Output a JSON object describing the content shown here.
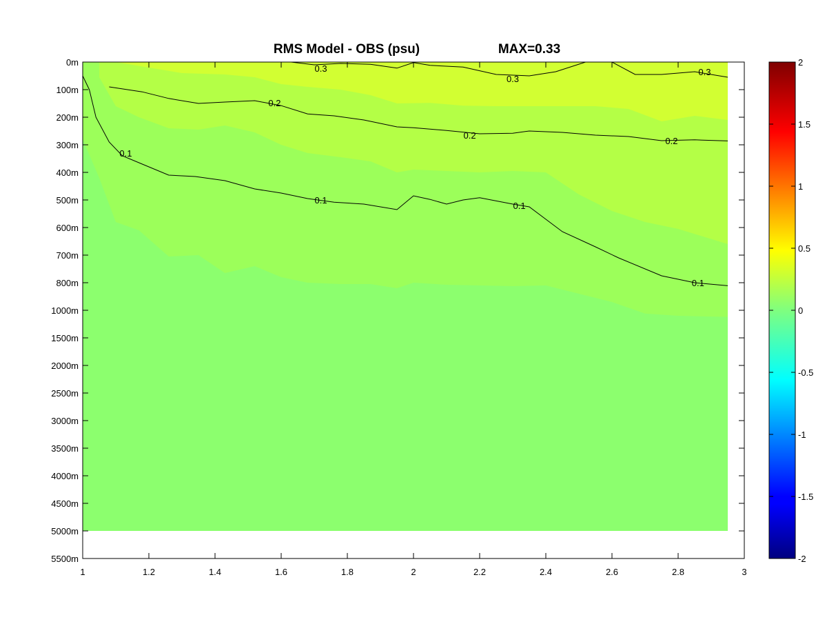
{
  "chart_data": {
    "type": "contour",
    "title": "RMS Model - OBS (psu)",
    "max_label": "MAX=0.33",
    "xlabel": "",
    "ylabel": "",
    "xlim": [
      1,
      3
    ],
    "x_ticks": [
      "1",
      "1.2",
      "1.4",
      "1.6",
      "1.8",
      "2",
      "2.2",
      "2.4",
      "2.6",
      "2.8",
      "3"
    ],
    "y_ticks": [
      "0m",
      "100m",
      "200m",
      "300m",
      "400m",
      "500m",
      "600m",
      "700m",
      "800m",
      "1000m",
      "1500m",
      "2000m",
      "2500m",
      "3000m",
      "3500m",
      "4000m",
      "4500m",
      "5000m",
      "5500m"
    ],
    "data_x_range": [
      1,
      2.95
    ],
    "data_depth_bottom": "5000m",
    "colorbar": {
      "colormap": "jet",
      "range": [
        -2,
        2
      ],
      "ticks": [
        "2",
        "1.5",
        "1",
        "0.5",
        "0",
        "-0.5",
        "-1",
        "-1.5",
        "-2"
      ]
    },
    "fill_colors": {
      "below_0.05": "#8cff6e",
      "0.05_0.15": "#9cff5a",
      "0.15_0.25": "#b4ff46",
      "0.25_0.35": "#d2ff32"
    },
    "contours": [
      {
        "level": 0.1,
        "labels": [
          "0.1",
          "0.1",
          "0.1",
          "0.1"
        ],
        "points": [
          [
            1.0,
            50
          ],
          [
            1.02,
            100
          ],
          [
            1.04,
            200
          ],
          [
            1.08,
            290
          ],
          [
            1.12,
            340
          ],
          [
            1.18,
            370
          ],
          [
            1.26,
            410
          ],
          [
            1.34,
            415
          ],
          [
            1.43,
            430
          ],
          [
            1.52,
            460
          ],
          [
            1.6,
            475
          ],
          [
            1.68,
            495
          ],
          [
            1.76,
            508
          ],
          [
            1.85,
            515
          ],
          [
            1.95,
            535
          ],
          [
            2.0,
            485
          ],
          [
            2.05,
            498
          ],
          [
            2.1,
            515
          ],
          [
            2.15,
            500
          ],
          [
            2.2,
            492
          ],
          [
            2.3,
            515
          ],
          [
            2.35,
            525
          ],
          [
            2.45,
            615
          ],
          [
            2.55,
            670
          ],
          [
            2.62,
            710
          ],
          [
            2.75,
            775
          ],
          [
            2.85,
            800
          ],
          [
            2.95,
            822
          ]
        ]
      },
      {
        "level": 0.2,
        "labels": [
          "0.2",
          "0.2",
          "0.2"
        ],
        "points": [
          [
            1.08,
            90
          ],
          [
            1.18,
            108
          ],
          [
            1.26,
            132
          ],
          [
            1.35,
            150
          ],
          [
            1.43,
            145
          ],
          [
            1.52,
            140
          ],
          [
            1.6,
            158
          ],
          [
            1.68,
            188
          ],
          [
            1.76,
            195
          ],
          [
            1.85,
            210
          ],
          [
            1.95,
            235
          ],
          [
            2.0,
            238
          ],
          [
            2.1,
            248
          ],
          [
            2.2,
            260
          ],
          [
            2.3,
            258
          ],
          [
            2.35,
            250
          ],
          [
            2.45,
            255
          ],
          [
            2.55,
            265
          ],
          [
            2.65,
            270
          ],
          [
            2.75,
            285
          ],
          [
            2.85,
            282
          ],
          [
            2.95,
            286
          ]
        ]
      },
      {
        "level": 0.3,
        "labels": [
          "0.3",
          "0.3",
          "0.3"
        ],
        "points": [
          [
            1.63,
            0
          ],
          [
            1.7,
            10
          ],
          [
            1.78,
            5
          ],
          [
            1.87,
            8
          ],
          [
            1.95,
            22
          ],
          [
            2.0,
            2
          ],
          [
            2.05,
            12
          ],
          [
            2.15,
            18
          ],
          [
            2.25,
            45
          ],
          [
            2.35,
            50
          ],
          [
            2.43,
            35
          ],
          [
            2.52,
            0
          ],
          [
            2.6,
            0
          ],
          [
            2.67,
            45
          ],
          [
            2.75,
            45
          ],
          [
            2.85,
            35
          ],
          [
            2.95,
            55
          ]
        ]
      }
    ]
  }
}
